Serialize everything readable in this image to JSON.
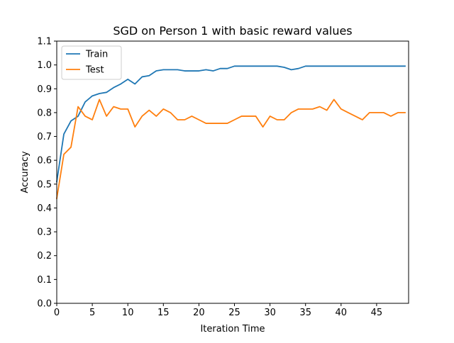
{
  "chart_data": {
    "type": "line",
    "title": "SGD on Person 1 with basic reward values",
    "xlabel": "Iteration Time",
    "ylabel": "Accuracy",
    "xlim": [
      0,
      49.5
    ],
    "ylim": [
      0.0,
      1.1
    ],
    "xticks": [
      0,
      5,
      10,
      15,
      20,
      25,
      30,
      35,
      40,
      45
    ],
    "yticks": [
      0.0,
      0.1,
      0.2,
      0.3,
      0.4,
      0.5,
      0.6,
      0.7,
      0.8,
      0.9,
      1.0,
      1.1
    ],
    "ytick_labels": [
      "0.0",
      "0.1",
      "0.2",
      "0.3",
      "0.4",
      "0.5",
      "0.6",
      "0.7",
      "0.8",
      "0.9",
      "1.0",
      "1.1"
    ],
    "grid": false,
    "legend_position": "upper-left",
    "x": [
      0,
      1,
      2,
      3,
      4,
      5,
      6,
      7,
      8,
      9,
      10,
      11,
      12,
      13,
      14,
      15,
      16,
      17,
      18,
      19,
      20,
      21,
      22,
      23,
      24,
      25,
      26,
      27,
      28,
      29,
      30,
      31,
      32,
      33,
      34,
      35,
      36,
      37,
      38,
      39,
      40,
      41,
      42,
      43,
      44,
      45,
      46,
      47,
      48,
      49
    ],
    "series": [
      {
        "name": "Train",
        "color": "#1f77b4",
        "values": [
          0.51,
          0.71,
          0.765,
          0.785,
          0.845,
          0.87,
          0.88,
          0.885,
          0.905,
          0.92,
          0.94,
          0.92,
          0.95,
          0.955,
          0.975,
          0.98,
          0.98,
          0.98,
          0.975,
          0.975,
          0.975,
          0.98,
          0.975,
          0.985,
          0.985,
          0.995,
          0.995,
          0.995,
          0.995,
          0.995,
          0.995,
          0.995,
          0.99,
          0.98,
          0.985,
          0.995,
          0.995,
          0.995,
          0.995,
          0.995,
          0.995,
          0.995,
          0.995,
          0.995,
          0.995,
          0.995,
          0.995,
          0.995,
          0.995,
          0.995
        ]
      },
      {
        "name": "Test",
        "color": "#ff7f0e",
        "values": [
          0.44,
          0.625,
          0.655,
          0.825,
          0.785,
          0.77,
          0.855,
          0.785,
          0.825,
          0.815,
          0.815,
          0.74,
          0.785,
          0.81,
          0.785,
          0.815,
          0.8,
          0.77,
          0.77,
          0.785,
          0.77,
          0.755,
          0.755,
          0.755,
          0.755,
          0.77,
          0.785,
          0.785,
          0.785,
          0.74,
          0.785,
          0.77,
          0.77,
          0.8,
          0.815,
          0.815,
          0.815,
          0.825,
          0.81,
          0.855,
          0.815,
          0.8,
          0.785,
          0.77,
          0.8,
          0.8,
          0.8,
          0.785,
          0.8,
          0.8
        ]
      }
    ]
  }
}
